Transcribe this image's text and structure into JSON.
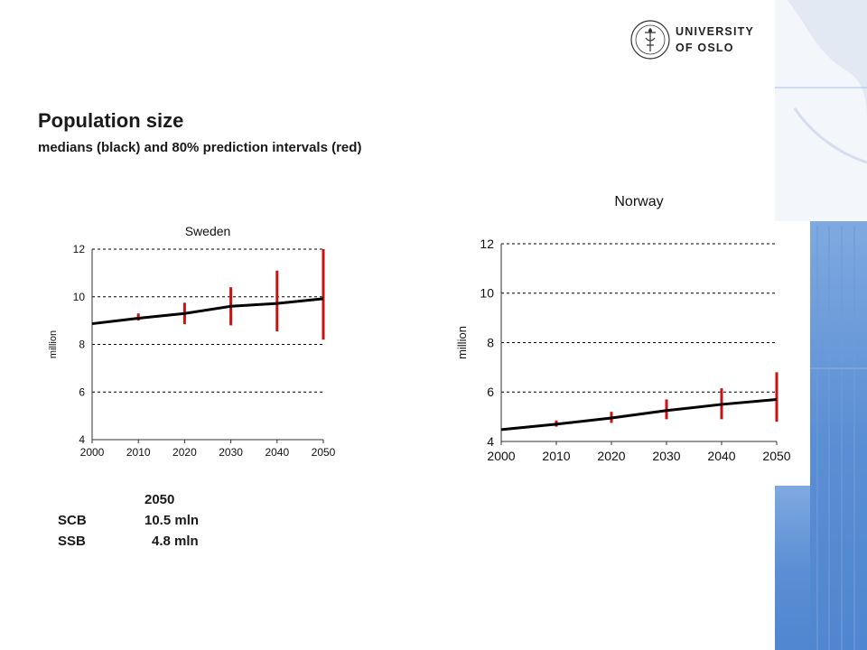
{
  "slide": {
    "title": "Population size",
    "subtitle": "medians (black) and 80% prediction intervals (red)"
  },
  "logo": {
    "line1": "UNIVERSITY",
    "line2": "OF OSLO",
    "icon": "university-seal-icon"
  },
  "colors": {
    "median_line": "#000000",
    "interval": "#cc1111",
    "gridline": "#000000",
    "side_blue": "#5b8fd4"
  },
  "table": {
    "header": "2050",
    "rows": [
      {
        "label": "SCB",
        "value": "10.5 mln"
      },
      {
        "label": "SSB",
        "value": "4.8 mln"
      }
    ]
  },
  "chart_data": [
    {
      "type": "line",
      "title": "Sweden",
      "xlabel": "",
      "ylabel": "million",
      "xlim": [
        2000,
        2050
      ],
      "ylim": [
        4,
        12
      ],
      "xticks": [
        2000,
        2010,
        2020,
        2030,
        2040,
        2050
      ],
      "yticks": [
        4,
        6,
        8,
        10,
        12
      ],
      "grid": "horizontal dashed",
      "series": [
        {
          "x": [
            2000,
            2010,
            2020,
            2030,
            2040,
            2050
          ],
          "values": [
            8.87,
            9.1,
            9.3,
            9.6,
            9.72,
            9.92
          ]
        }
      ],
      "intervals": [
        {
          "x": 2010,
          "low": 9.0,
          "high": 9.3
        },
        {
          "x": 2020,
          "low": 8.85,
          "high": 9.75
        },
        {
          "x": 2030,
          "low": 8.8,
          "high": 10.4
        },
        {
          "x": 2040,
          "low": 8.55,
          "high": 11.1
        },
        {
          "x": 2050,
          "low": 8.2,
          "high": 12.0
        }
      ]
    },
    {
      "type": "line",
      "title": "Norway",
      "xlabel": "",
      "ylabel": "million",
      "xlim": [
        2000,
        2050
      ],
      "ylim": [
        4,
        12
      ],
      "xticks": [
        2000,
        2010,
        2020,
        2030,
        2040,
        2050
      ],
      "yticks": [
        4,
        6,
        8,
        10,
        12
      ],
      "grid": "horizontal dashed",
      "series": [
        {
          "x": [
            2000,
            2010,
            2020,
            2030,
            2040,
            2050
          ],
          "values": [
            4.48,
            4.7,
            4.95,
            5.25,
            5.5,
            5.7
          ]
        }
      ],
      "intervals": [
        {
          "x": 2010,
          "low": 4.6,
          "high": 4.85
        },
        {
          "x": 2020,
          "low": 4.75,
          "high": 5.2
        },
        {
          "x": 2030,
          "low": 4.9,
          "high": 5.7
        },
        {
          "x": 2040,
          "low": 4.9,
          "high": 6.15
        },
        {
          "x": 2050,
          "low": 4.8,
          "high": 6.8
        }
      ]
    }
  ]
}
